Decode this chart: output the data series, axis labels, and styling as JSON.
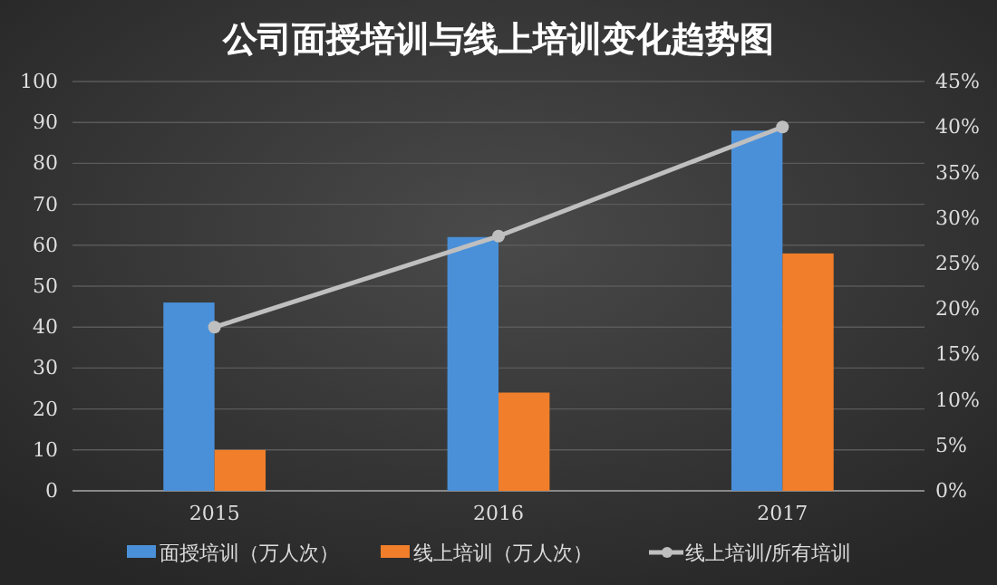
{
  "chart_data": {
    "type": "bar",
    "title": "公司面授培训与线上培训变化趋势图",
    "categories": [
      "2015",
      "2016",
      "2017"
    ],
    "series": [
      {
        "name": "面授培训（万人次）",
        "color": "#4a90d9",
        "values": [
          46,
          62,
          88
        ]
      },
      {
        "name": "线上培训（万人次）",
        "color": "#f07e2a",
        "values": [
          10,
          24,
          58
        ]
      },
      {
        "name": "线上培训/所有培训",
        "type": "line",
        "axis": "y2",
        "color": "#bfbfbf",
        "values": [
          18,
          28,
          40
        ]
      }
    ],
    "ylim": [
      0,
      100
    ],
    "yticks": [
      0,
      10,
      20,
      30,
      40,
      50,
      60,
      70,
      80,
      90,
      100
    ],
    "y2lim": [
      0,
      45
    ],
    "y2ticks": [
      {
        "value": 0,
        "label": "0%"
      },
      {
        "value": 5,
        "label": "5%"
      },
      {
        "value": 10,
        "label": "10%"
      },
      {
        "value": 15,
        "label": "15%"
      },
      {
        "value": 20,
        "label": "20%"
      },
      {
        "value": 25,
        "label": "25%"
      },
      {
        "value": 30,
        "label": "30%"
      },
      {
        "value": 35,
        "label": "35%"
      },
      {
        "value": 40,
        "label": "40%"
      },
      {
        "value": 45,
        "label": "45%"
      }
    ],
    "grid": "y",
    "legend": "bottom",
    "marker": "circle"
  }
}
